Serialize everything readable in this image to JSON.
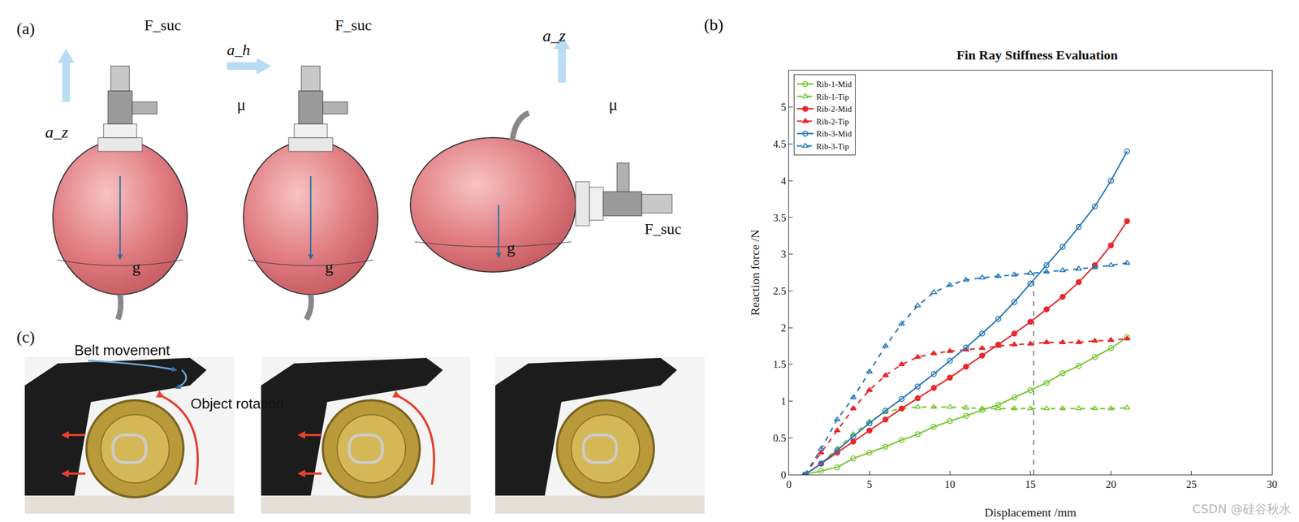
{
  "chart_data": {
    "type": "line",
    "title": "Fin Ray Stiffness Evaluation",
    "x_label": "Displacement /mm",
    "y_label": "Reaction force /N",
    "x": [
      1,
      2,
      3,
      4,
      5,
      6,
      7,
      8,
      9,
      10,
      11,
      12,
      13,
      14,
      15,
      16,
      17,
      18,
      19,
      20,
      21
    ],
    "series": [
      {
        "name": "Rib-1-Mid",
        "color": "#77c733",
        "marker": "circle-open",
        "line_style": "solid",
        "values": [
          0,
          0.05,
          0.1,
          0.22,
          0.3,
          0.38,
          0.47,
          0.55,
          0.65,
          0.73,
          0.8,
          0.88,
          0.95,
          1.05,
          1.15,
          1.25,
          1.38,
          1.48,
          1.6,
          1.72,
          1.87
        ]
      },
      {
        "name": "Rib-1-Tip",
        "color": "#77c733",
        "marker": "triangle-up-open",
        "line_style": "dashed",
        "values": [
          0,
          0.15,
          0.35,
          0.55,
          0.72,
          0.85,
          0.9,
          0.92,
          0.92,
          0.92,
          0.91,
          0.9,
          0.9,
          0.9,
          0.9,
          0.9,
          0.9,
          0.9,
          0.9,
          0.9,
          0.91
        ]
      },
      {
        "name": "Rib-2-Mid",
        "color": "#e8282b",
        "marker": "circle",
        "line_style": "solid",
        "values": [
          0,
          0.15,
          0.3,
          0.45,
          0.6,
          0.75,
          0.9,
          1.04,
          1.18,
          1.32,
          1.47,
          1.62,
          1.77,
          1.92,
          2.08,
          2.25,
          2.42,
          2.62,
          2.85,
          3.12,
          3.45
        ]
      },
      {
        "name": "Rib-2-Tip",
        "color": "#e8282b",
        "marker": "triangle-up",
        "line_style": "dashed",
        "values": [
          0,
          0.3,
          0.6,
          0.9,
          1.15,
          1.35,
          1.5,
          1.6,
          1.65,
          1.68,
          1.7,
          1.72,
          1.75,
          1.77,
          1.78,
          1.8,
          1.8,
          1.8,
          1.82,
          1.83,
          1.85
        ]
      },
      {
        "name": "Rib-3-Mid",
        "color": "#2878b8",
        "marker": "circle-open",
        "line_style": "solid",
        "values": [
          0,
          0.15,
          0.33,
          0.52,
          0.7,
          0.87,
          1.03,
          1.2,
          1.37,
          1.55,
          1.73,
          1.92,
          2.12,
          2.35,
          2.6,
          2.85,
          3.1,
          3.37,
          3.65,
          4.0,
          4.4
        ]
      },
      {
        "name": "Rib-3-Tip",
        "color": "#2878b8",
        "marker": "triangle-up-open",
        "line_style": "dashed",
        "values": [
          0,
          0.35,
          0.75,
          1.05,
          1.4,
          1.75,
          2.05,
          2.3,
          2.48,
          2.58,
          2.65,
          2.68,
          2.7,
          2.72,
          2.74,
          2.76,
          2.78,
          2.8,
          2.82,
          2.85,
          2.88
        ]
      }
    ],
    "vline": {
      "x": 15.2,
      "ymin": 0,
      "ymax": 2.74
    },
    "xlim": [
      0,
      30
    ],
    "xticks": [
      0,
      5,
      10,
      15,
      20,
      25,
      30
    ],
    "ylim": [
      0,
      5.5
    ],
    "yticks": [
      0,
      0.5,
      1,
      1.5,
      2,
      2.5,
      3,
      3.5,
      4,
      4.5,
      5
    ],
    "grid": false,
    "legend": "top-left"
  },
  "figure": {
    "panel_labels": [
      "(a)",
      "(b)",
      "(c)"
    ],
    "panel_a": [
      {
        "force": "F_suc",
        "accel": "a_z",
        "gravity": "g"
      },
      {
        "force": "F_suc",
        "accel": "a_h",
        "friction": "μ",
        "gravity": "g"
      },
      {
        "force": "F_suc",
        "accel": "a_z",
        "friction": "μ",
        "gravity": "g"
      }
    ],
    "panel_c": {
      "belt": "Belt movement",
      "rotation": "Object rotation"
    },
    "watermark": "CSDN @硅谷秋水"
  }
}
